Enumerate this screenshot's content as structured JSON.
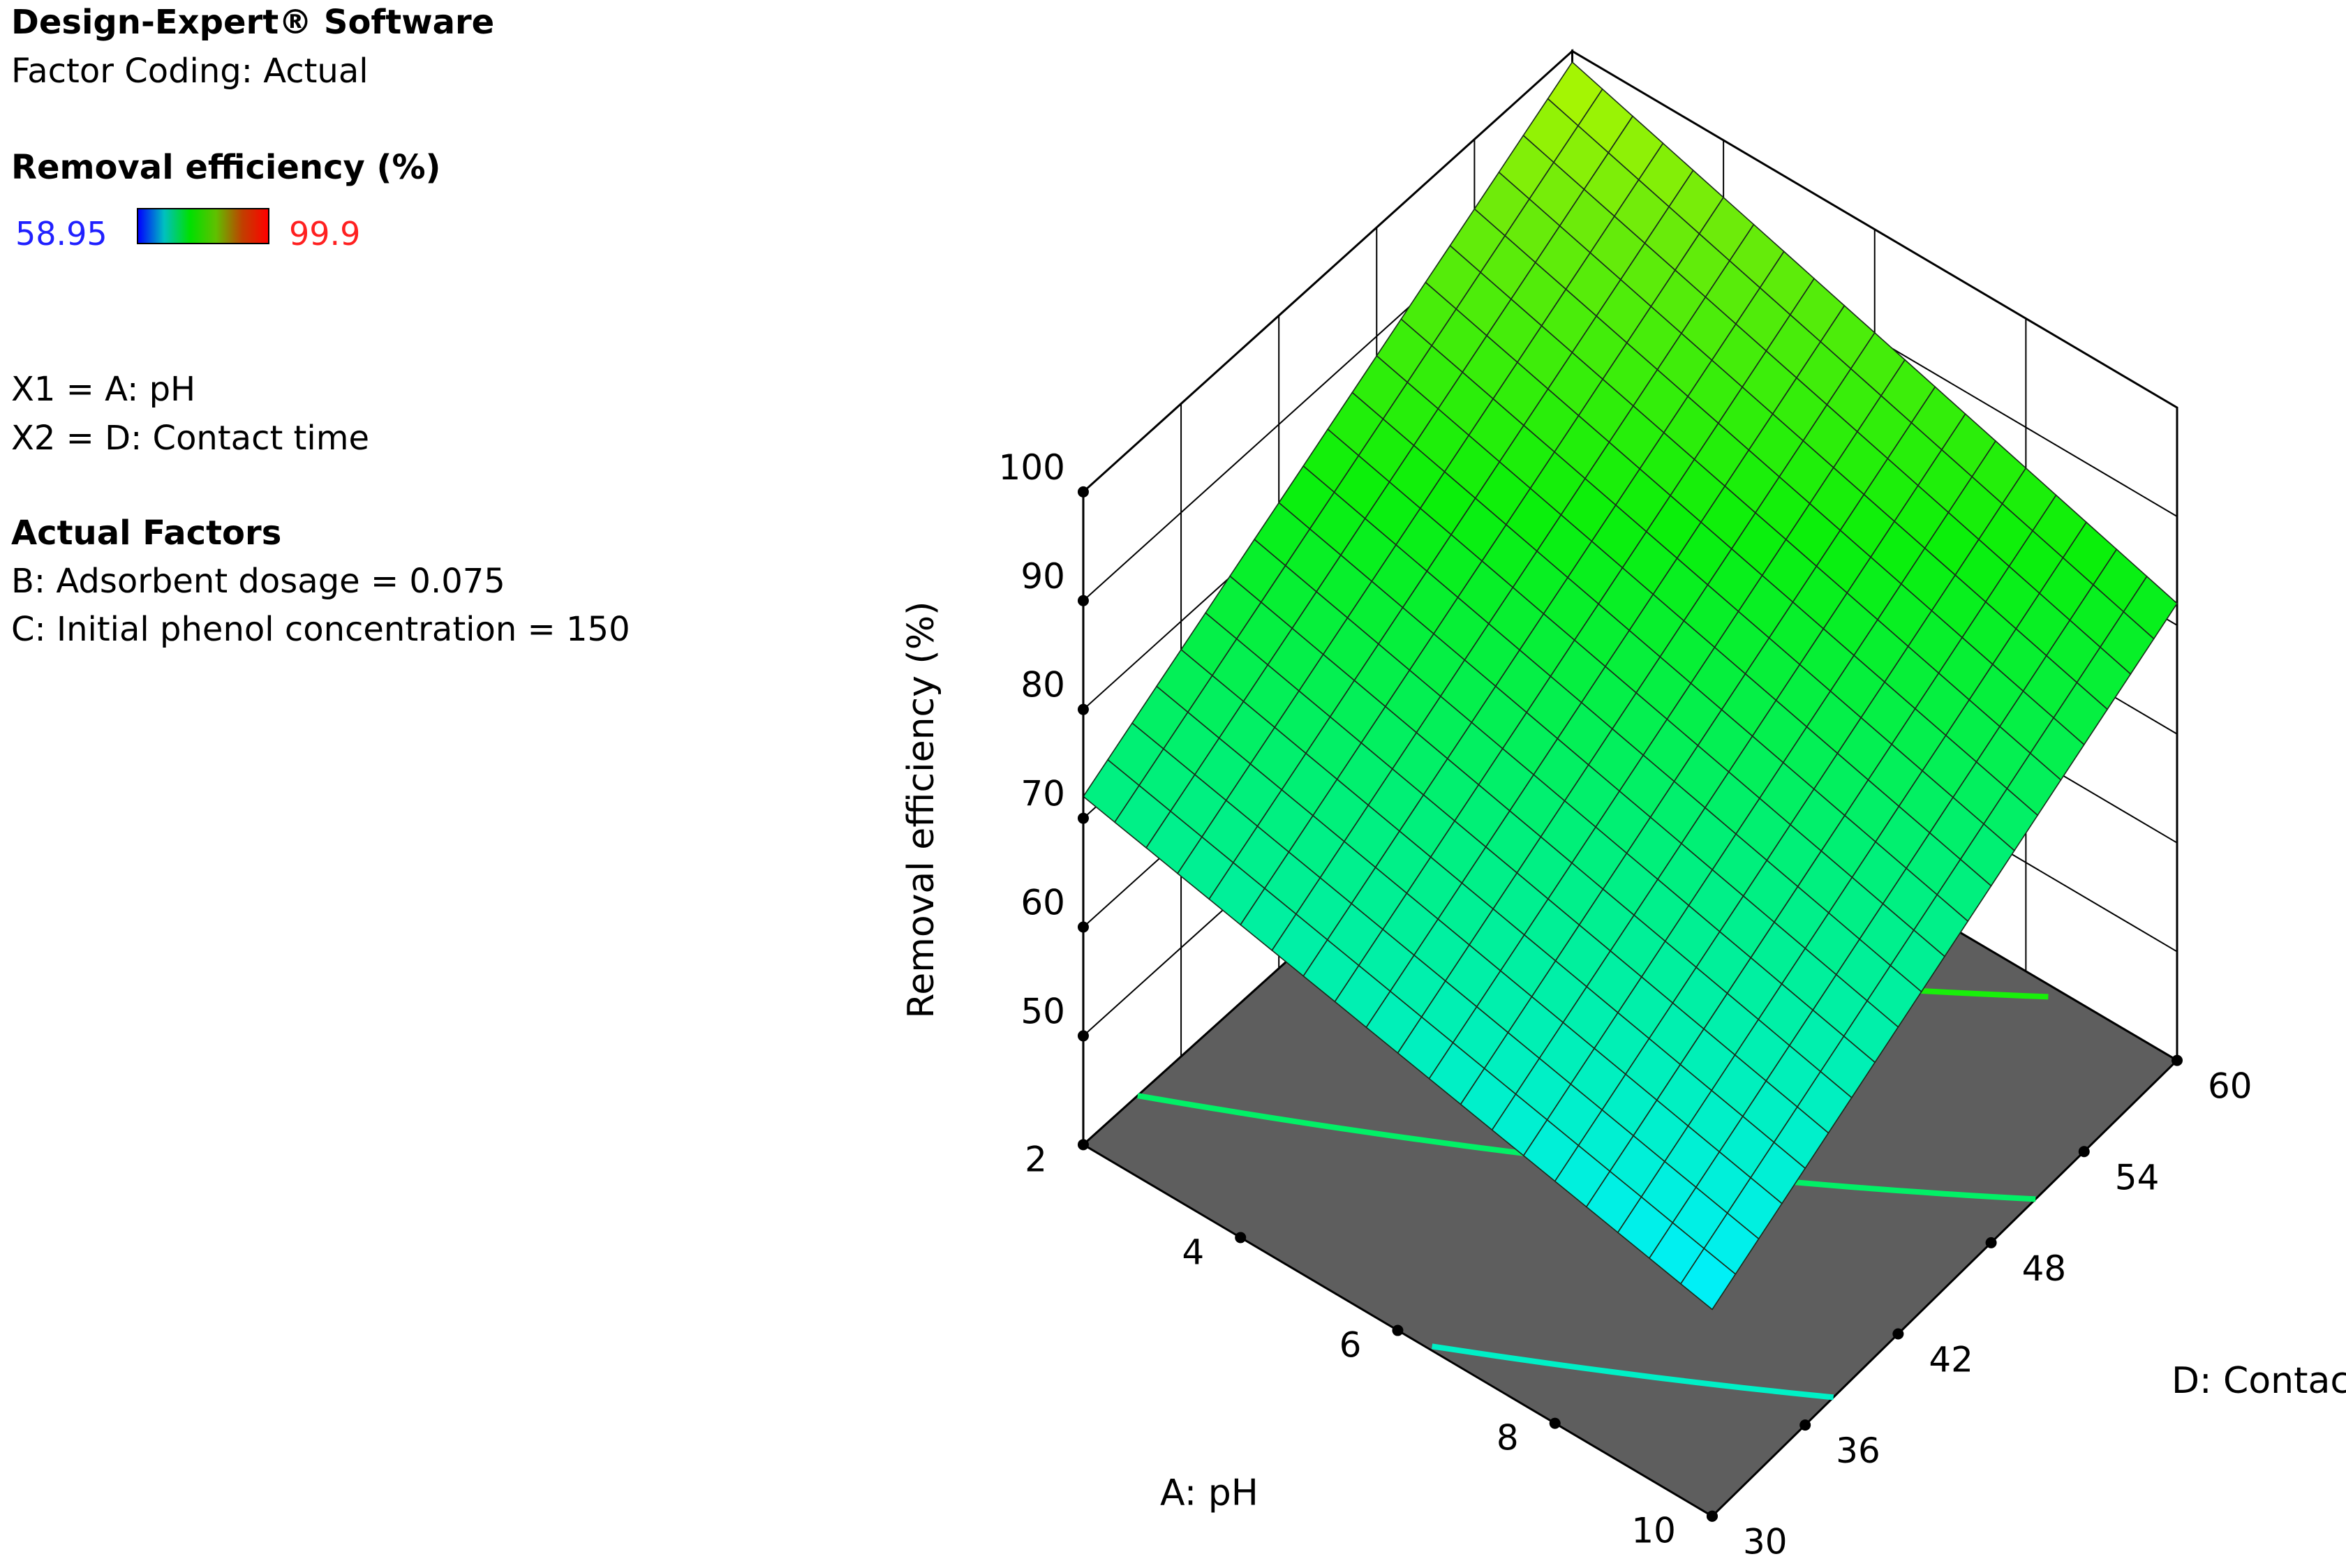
{
  "header": {
    "software": "Design-Expert® Software",
    "coding": "Factor Coding: Actual"
  },
  "response": {
    "title": "Removal efficiency (%)",
    "min_label": "58.95",
    "max_label": "99.9",
    "colors": {
      "min": "#0000ff",
      "max": "#ff0000"
    }
  },
  "factors": {
    "x1": "X1 = A: pH",
    "x2": "X2 = D: Contact time"
  },
  "actual_factors": {
    "title": "Actual Factors",
    "b": "B: Adsorbent dosage = 0.075",
    "c": "C: Initial phenol concentration = 150"
  },
  "chart_data": {
    "type": "surface",
    "zlabel": "Removal efficiency (%)",
    "xlabel": "A: pH",
    "ylabel": "D: Contact time (min)",
    "x_ticks": [
      "2",
      "4",
      "6",
      "8",
      "10"
    ],
    "y_ticks": [
      "30",
      "36",
      "42",
      "48",
      "54",
      "60"
    ],
    "z_ticks": [
      "50",
      "60",
      "70",
      "80",
      "90",
      "100"
    ],
    "xlim": [
      2,
      10
    ],
    "ylim": [
      30,
      60
    ],
    "zlim": [
      40,
      100
    ],
    "surface_corners": [
      {
        "pH": 2,
        "time": 30,
        "value": 72
      },
      {
        "pH": 2,
        "time": 60,
        "value": 99
      },
      {
        "pH": 10,
        "time": 60,
        "value": 82
      },
      {
        "pH": 10,
        "time": 30,
        "value": 59
      }
    ],
    "color_range": [
      58.95,
      99.9
    ]
  }
}
